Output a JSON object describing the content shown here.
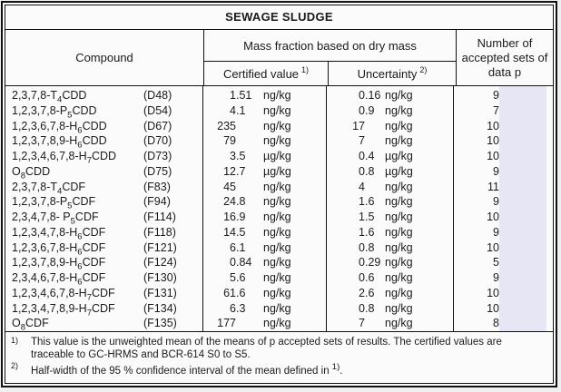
{
  "title": "SEWAGE SLUDGE",
  "header": {
    "compound": "Compound",
    "mass_fraction": "Mass fraction based on dry mass",
    "certified_value": "Certified value",
    "certified_note": "1)",
    "uncertainty": "Uncertainty",
    "uncertainty_note": "2)",
    "accepted_sets": "Number of accepted sets of data p"
  },
  "table": {
    "rows": [
      {
        "compound": "2,3,7,8-T~4~CDD",
        "code": "(D48)",
        "certified": "1.51",
        "certified_unit": "ng/kg",
        "uncertainty": "0.16",
        "uncertainty_unit": "ng/kg",
        "p": "9"
      },
      {
        "compound": "1,2,3,7,8-P~5~CDD",
        "code": "(D54)",
        "certified": "4.1",
        "certified_unit": "ng/kg",
        "uncertainty": "0.9",
        "uncertainty_unit": "ng/kg",
        "p": "7"
      },
      {
        "compound": "1,2,3,6,7,8-H~6~CDD",
        "code": "(D67)",
        "certified": "235",
        "certified_unit": "ng/kg",
        "uncertainty": "17",
        "uncertainty_unit": "ng/kg",
        "p": "10"
      },
      {
        "compound": "1,2,3,7,8,9-H~6~CDD",
        "code": "(D70)",
        "certified": "79",
        "certified_unit": "ng/kg",
        "uncertainty": "7",
        "uncertainty_unit": "ng/kg",
        "p": "10"
      },
      {
        "compound": "1,2,3,4,6,7,8-H~7~CDD",
        "code": "(D73)",
        "certified": "3.5",
        "certified_unit": "µg/kg",
        "uncertainty": "0.4",
        "uncertainty_unit": "µg/kg",
        "p": "10"
      },
      {
        "compound": "O~8~CDD",
        "code": "(D75)",
        "certified": "12.7",
        "certified_unit": "µg/kg",
        "uncertainty": "0.8",
        "uncertainty_unit": "µg/kg",
        "p": "9"
      },
      {
        "compound": "2,3,7,8-T~4~CDF",
        "code": "(F83)",
        "certified": "45",
        "certified_unit": "ng/kg",
        "uncertainty": "4",
        "uncertainty_unit": "ng/kg",
        "p": "11"
      },
      {
        "compound": "1,2,3,7,8-P~5~CDF",
        "code": "(F94)",
        "certified": "24.8",
        "certified_unit": "ng/kg",
        "uncertainty": "1.6",
        "uncertainty_unit": "ng/kg",
        "p": "9"
      },
      {
        "compound": "2,3,4,7,8- P~5~CDF",
        "code": "(F114)",
        "certified": "16.9",
        "certified_unit": "ng/kg",
        "uncertainty": "1.5",
        "uncertainty_unit": "ng/kg",
        "p": "10"
      },
      {
        "compound": "1,2,3,4,7,8-H~6~CDF",
        "code": "(F118)",
        "certified": "14.5",
        "certified_unit": "ng/kg",
        "uncertainty": "1.6",
        "uncertainty_unit": "ng/kg",
        "p": "9"
      },
      {
        "compound": "1,2,3,6,7,8-H~6~CDF",
        "code": "(F121)",
        "certified": "6.1",
        "certified_unit": "ng/kg",
        "uncertainty": "0.8",
        "uncertainty_unit": "ng/kg",
        "p": "10"
      },
      {
        "compound": "1,2,3,7,8,9-H~6~CDF",
        "code": "(F124)",
        "certified": "0.84",
        "certified_unit": "ng/kg",
        "uncertainty": "0.29",
        "uncertainty_unit": "ng/kg",
        "p": "5"
      },
      {
        "compound": "2,3,4,6,7,8-H~6~CDF",
        "code": "(F130)",
        "certified": "5.6",
        "certified_unit": "ng/kg",
        "uncertainty": "0.6",
        "uncertainty_unit": "ng/kg",
        "p": "9"
      },
      {
        "compound": "1,2,3,4,6,7,8-H~7~CDF",
        "code": "(F131)",
        "certified": "61.6",
        "certified_unit": "ng/kg",
        "uncertainty": "2.6",
        "uncertainty_unit": "ng/kg",
        "p": "10"
      },
      {
        "compound": "1,2,3,4,7,8,9-H~7~CDF",
        "code": "(F134)",
        "certified": "6.3",
        "certified_unit": "ng/kg",
        "uncertainty": "0.8",
        "uncertainty_unit": "ng/kg",
        "p": "10"
      },
      {
        "compound": "O~8~CDF",
        "code": "(F135)",
        "certified": "177",
        "certified_unit": "ng/kg",
        "uncertainty": "7",
        "uncertainty_unit": "ng/kg",
        "p": "8"
      }
    ]
  },
  "footnotes": [
    {
      "marker": "1)",
      "text": "This value is the unweighted mean of the means of p accepted sets of results. The certified values are traceable to GC-HRMS and BCR-614 S0 to S5."
    },
    {
      "marker": "2)",
      "text": "Half-width of the 95 % confidence interval of the mean defined in ^1)^."
    }
  ],
  "colors": {
    "highlight": "#e6e6f4",
    "border": "#111111",
    "table_background": "#fbfbfb",
    "page_background": "#f0f0f0",
    "text": "#1a1a1a"
  }
}
